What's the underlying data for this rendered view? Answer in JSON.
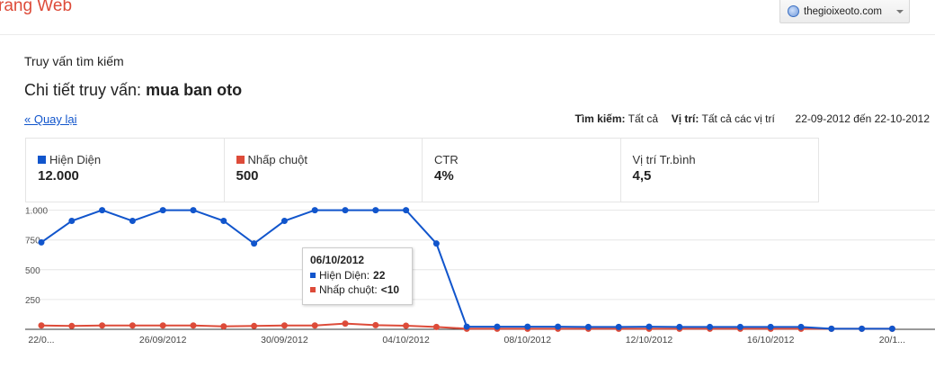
{
  "header": {
    "title": "rang Web",
    "site_select": "thegioixeoto.com"
  },
  "page": {
    "section": "Truy vấn tìm kiếm",
    "heading_prefix": "Chi tiết truy vấn:",
    "query": "mua ban oto",
    "back_link": "« Quay lại"
  },
  "filters": {
    "search_label": "Tìm kiếm:",
    "search_value": "Tất cả",
    "position_label": "Vị trí:",
    "position_value": "Tất cả các vị trí",
    "date_range": "22-09-2012 đến 22-10-2012"
  },
  "metrics": [
    {
      "label": "Hiện Diện",
      "value": "12.000",
      "color": "#1155cc"
    },
    {
      "label": "Nhấp chuột",
      "value": "500",
      "color": "#dd4b39"
    },
    {
      "label": "CTR",
      "value": "4%"
    },
    {
      "label": "Vị trí Tr.bình",
      "value": "4,5"
    }
  ],
  "tooltip": {
    "date": "06/10/2012",
    "impressions_label": "Hiện Diện:",
    "impressions_value": "22",
    "clicks_label": "Nhấp chuột:",
    "clicks_value": "<10"
  },
  "chart_data": {
    "type": "line",
    "x": [
      "22/09/2012",
      "23/09/2012",
      "24/09/2012",
      "25/09/2012",
      "26/09/2012",
      "27/09/2012",
      "28/09/2012",
      "29/09/2012",
      "30/09/2012",
      "01/10/2012",
      "02/10/2012",
      "03/10/2012",
      "04/10/2012",
      "05/10/2012",
      "06/10/2012",
      "07/10/2012",
      "08/10/2012",
      "09/10/2012",
      "10/10/2012",
      "11/10/2012",
      "12/10/2012",
      "13/10/2012",
      "14/10/2012",
      "15/10/2012",
      "16/10/2012",
      "17/10/2012",
      "18/10/2012",
      "19/10/2012",
      "20/10/2012"
    ],
    "x_tick_labels": [
      "22/0...",
      "26/09/2012",
      "30/09/2012",
      "04/10/2012",
      "08/10/2012",
      "12/10/2012",
      "16/10/2012",
      "20/1..."
    ],
    "x_tick_index": [
      0,
      4,
      8,
      12,
      16,
      20,
      24,
      28
    ],
    "y_tick_labels": [
      "1.000",
      "750",
      "500",
      "250"
    ],
    "y_ticks": [
      1000,
      750,
      500,
      250
    ],
    "ylim": [
      0,
      1050
    ],
    "series": [
      {
        "name": "Hiện Diện",
        "color": "#1155cc",
        "values": [
          730,
          910,
          1000,
          910,
          1000,
          1000,
          910,
          720,
          910,
          1000,
          1000,
          1000,
          1000,
          720,
          22,
          22,
          22,
          22,
          20,
          20,
          22,
          20,
          20,
          20,
          20,
          20,
          5,
          5,
          5
        ]
      },
      {
        "name": "Nhấp chuột",
        "color": "#dd4b39",
        "values": [
          32,
          28,
          32,
          32,
          32,
          32,
          25,
          28,
          32,
          32,
          48,
          35,
          30,
          20,
          5,
          5,
          5,
          5,
          5,
          5,
          5,
          5,
          5,
          5,
          5,
          5,
          5,
          5,
          5
        ]
      }
    ]
  }
}
